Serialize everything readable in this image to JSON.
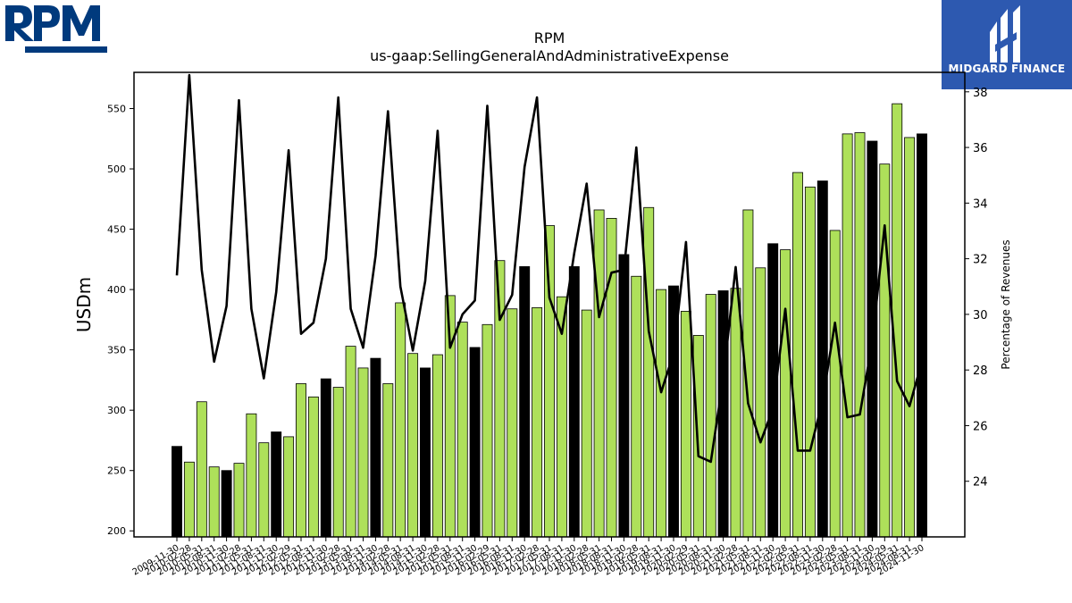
{
  "logos": {
    "left": {
      "text": "RPM",
      "color": "#003a7d"
    },
    "right": {
      "text": "MIDGARD FINANCE",
      "bg": "#2d59b0"
    }
  },
  "chart_data": {
    "type": "bar",
    "title": "RPM",
    "subtitle": "us-gaap:SellingGeneralAndAdministrativeExpense",
    "ylabel": "USDm",
    "y2label": "Percentage of Revenues",
    "ylim": [
      195,
      580
    ],
    "y2lim": [
      22,
      38.7
    ],
    "yticks": [
      200,
      250,
      300,
      350,
      400,
      450,
      500,
      550
    ],
    "y2ticks": [
      24,
      26,
      28,
      30,
      32,
      34,
      36,
      38
    ],
    "colors": {
      "quarter": "#aee05a",
      "annual": "#000000",
      "line": "#000000"
    },
    "categories": [
      "2009-11-30",
      "2010-02-28",
      "2010-05-31",
      "2010-08-31",
      "2010-11-30",
      "2011-02-28",
      "2011-05-31",
      "2011-08-31",
      "2011-11-30",
      "2012-02-29",
      "2012-05-31",
      "2012-08-31",
      "2012-11-30",
      "2013-02-28",
      "2013-05-31",
      "2013-08-31",
      "2013-11-30",
      "2014-02-28",
      "2014-05-31",
      "2014-08-31",
      "2014-11-30",
      "2015-02-28",
      "2015-05-31",
      "2015-08-31",
      "2015-11-30",
      "2016-02-29",
      "2016-05-31",
      "2016-08-31",
      "2016-11-30",
      "2017-02-28",
      "2017-05-31",
      "2017-08-31",
      "2017-11-30",
      "2018-02-28",
      "2018-05-31",
      "2018-08-31",
      "2018-11-30",
      "2019-02-28",
      "2019-05-31",
      "2019-08-31",
      "2019-11-30",
      "2020-02-29",
      "2020-05-31",
      "2020-08-31",
      "2020-11-30",
      "2021-02-28",
      "2021-05-31",
      "2021-08-31",
      "2021-11-30",
      "2022-02-28",
      "2022-05-31",
      "2022-08-31",
      "2022-11-30",
      "2023-02-28",
      "2023-05-31",
      "2023-08-31",
      "2023-11-30",
      "2024-02-29",
      "2024-05-31",
      "2024-08-31",
      "2024-11-30"
    ],
    "series": [
      {
        "name": "SellingGeneralAndAdministrativeExpense",
        "axis": "left",
        "values": [
          270,
          257,
          307,
          253,
          250,
          256,
          297,
          273,
          282,
          278,
          322,
          311,
          326,
          319,
          353,
          335,
          343,
          322,
          389,
          347,
          335,
          346,
          395,
          373,
          352,
          371,
          424,
          384,
          419,
          385,
          453,
          394,
          419,
          383,
          466,
          459,
          429,
          411,
          468,
          400,
          403,
          382,
          362,
          396,
          399,
          401,
          466,
          418,
          438,
          433,
          497,
          485,
          490,
          449,
          529,
          530,
          523,
          504,
          554,
          526,
          529
        ],
        "annual": [
          true,
          false,
          false,
          false,
          true,
          false,
          false,
          false,
          true,
          false,
          false,
          false,
          true,
          false,
          false,
          false,
          true,
          false,
          false,
          false,
          true,
          false,
          false,
          false,
          true,
          false,
          false,
          false,
          true,
          false,
          false,
          false,
          true,
          false,
          false,
          false,
          true,
          false,
          false,
          false,
          true,
          false,
          false,
          false,
          true,
          false,
          false,
          false,
          true,
          false,
          false,
          false,
          true,
          false,
          false,
          false,
          true,
          false,
          false,
          false,
          true
        ]
      },
      {
        "name": "Percentage of Revenues",
        "axis": "right",
        "type": "line",
        "values": [
          31.4,
          38.6,
          31.6,
          28.3,
          30.3,
          37.7,
          30.2,
          27.7,
          30.8,
          35.9,
          29.3,
          29.7,
          32.0,
          37.8,
          30.2,
          28.8,
          32.1,
          37.3,
          31.0,
          28.7,
          31.2,
          36.6,
          28.8,
          30.0,
          30.5,
          37.5,
          29.8,
          30.7,
          35.3,
          37.8,
          30.6,
          29.3,
          32.2,
          34.7,
          29.9,
          31.5,
          31.6,
          36.0,
          29.4,
          27.2,
          28.6,
          32.6,
          24.9,
          24.7,
          27.7,
          31.7,
          26.8,
          25.4,
          26.6,
          30.2,
          25.1,
          25.1,
          26.9,
          29.7,
          26.3,
          26.4,
          29.0,
          33.2,
          27.6,
          26.7,
          28.3
        ]
      }
    ]
  }
}
